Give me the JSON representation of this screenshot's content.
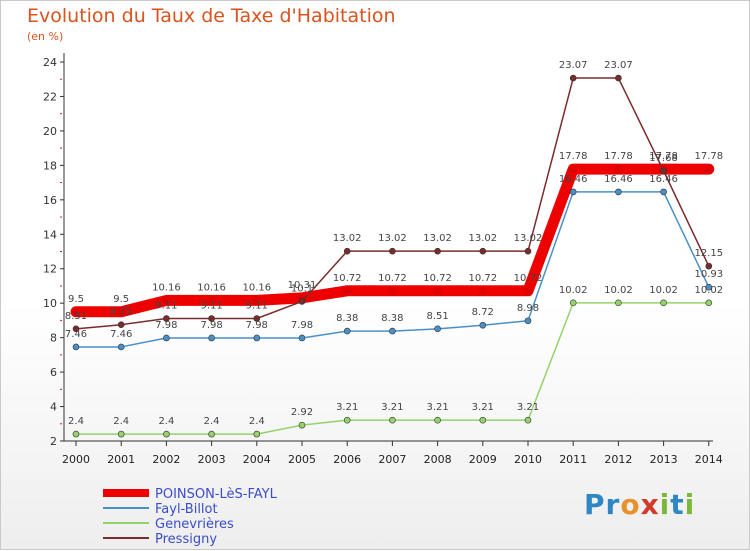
{
  "title": "Evolution du Taux de Taxe d'Habitation",
  "subtitle": "(en %)",
  "logo": "Proxiti",
  "chart_data": {
    "type": "line",
    "title": "Evolution du Taux de Taxe d'Habitation",
    "ylabel": "(en %)",
    "xlabel": "",
    "ylim": [
      2,
      24
    ],
    "yticks": [
      2,
      4,
      6,
      8,
      10,
      12,
      14,
      16,
      18,
      20,
      22,
      24
    ],
    "grid": false,
    "legend_position": "bottom-left",
    "x": [
      "2000",
      "2001",
      "2002",
      "2003",
      "2004",
      "2005",
      "2006",
      "2007",
      "2008",
      "2009",
      "2010",
      "2011",
      "2012",
      "2013",
      "2014"
    ],
    "series": [
      {
        "name": "POINSON-LèS-FAYL",
        "color": "#ee0000",
        "values": [
          9.5,
          9.5,
          10.16,
          10.16,
          10.16,
          10.31,
          10.72,
          10.72,
          10.72,
          10.72,
          10.72,
          17.78,
          17.78,
          17.78,
          17.78
        ],
        "labels": [
          "9.5",
          "9.5",
          "10.16",
          "10.16",
          "10.16",
          "10.31",
          "10.72",
          "10.72",
          "10.72",
          "10.72",
          "10.72",
          "17.78",
          "17.78",
          "17.78",
          "17.78"
        ]
      },
      {
        "name": "Fayl-Billot",
        "color": "#4a90c8",
        "values": [
          7.46,
          7.46,
          7.98,
          7.98,
          7.98,
          7.98,
          8.38,
          8.38,
          8.51,
          8.72,
          8.98,
          16.46,
          16.46,
          16.46,
          10.93
        ],
        "labels": [
          "7.46",
          "7.46",
          "7.98",
          "7.98",
          "7.98",
          "7.98",
          "8.38",
          "8.38",
          "8.51",
          "8.72",
          "8.98",
          "16.46",
          "16.46",
          "16.46",
          "10.93"
        ]
      },
      {
        "name": "Genevrières",
        "color": "#93d36a",
        "values": [
          2.4,
          2.4,
          2.4,
          2.4,
          2.4,
          2.92,
          3.21,
          3.21,
          3.21,
          3.21,
          3.21,
          10.02,
          10.02,
          10.02,
          10.02
        ],
        "labels": [
          "2.4",
          "2.4",
          "2.4",
          "2.4",
          "2.4",
          "2.92",
          "3.21",
          "3.21",
          "3.21",
          "3.21",
          "3.21",
          "10.02",
          "10.02",
          "10.02",
          "10.02"
        ]
      },
      {
        "name": "Pressigny",
        "color": "#7a2c2c",
        "values": [
          8.51,
          8.75,
          9.11,
          9.11,
          9.11,
          10.1,
          13.02,
          13.02,
          13.02,
          13.02,
          13.02,
          23.07,
          23.07,
          17.68,
          12.15
        ],
        "labels": [
          "8.51",
          "8.75",
          "9.11",
          "9.11",
          "9.11",
          "10.1",
          "13.02",
          "13.02",
          "13.02",
          "13.02",
          "13.02",
          "23.07",
          "23.07",
          "17.68",
          "12.15"
        ]
      }
    ]
  }
}
